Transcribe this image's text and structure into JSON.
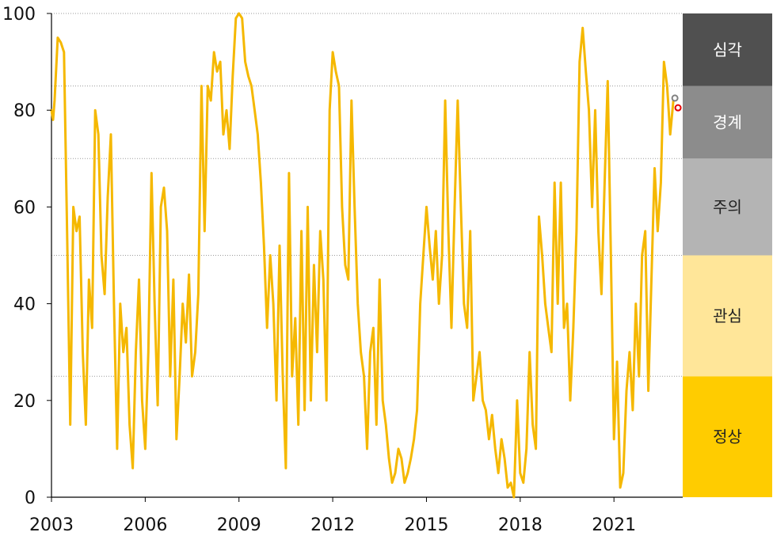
{
  "chart_data": {
    "type": "line",
    "xlabel": "",
    "ylabel": "",
    "xlim": [
      2003.0,
      2023.2
    ],
    "ylim": [
      0,
      100
    ],
    "y_ticks": [
      "0",
      "20",
      "40",
      "60",
      "80",
      "100"
    ],
    "x_ticks": [
      "2003",
      "2006",
      "2009",
      "2012",
      "2015",
      "2018",
      "2021"
    ],
    "grid": "horizontal dotted lines at 25, 50, 70, 85 and 100",
    "bands": [
      {
        "label": "정상",
        "from": 0,
        "to": 25,
        "color": "#ffcc00",
        "text_color": "#222222"
      },
      {
        "label": "관심",
        "from": 25,
        "to": 50,
        "color": "#ffe699",
        "text_color": "#222222"
      },
      {
        "label": "주의",
        "from": 50,
        "to": 70,
        "color": "#b4b4b4",
        "text_color": "#222222"
      },
      {
        "label": "경계",
        "from": 70,
        "to": 85,
        "color": "#8c8c8c",
        "text_color": "#ffffff"
      },
      {
        "label": "심각",
        "from": 85,
        "to": 100,
        "color": "#505050",
        "text_color": "#ffffff"
      }
    ],
    "series": [
      {
        "color": "#f5b800",
        "points": [
          [
            2003.0,
            80
          ],
          [
            2003.05,
            78
          ],
          [
            2003.1,
            82
          ],
          [
            2003.2,
            95
          ],
          [
            2003.3,
            94
          ],
          [
            2003.4,
            92
          ],
          [
            2003.5,
            55
          ],
          [
            2003.6,
            15
          ],
          [
            2003.7,
            60
          ],
          [
            2003.8,
            55
          ],
          [
            2003.9,
            58
          ],
          [
            2004.0,
            30
          ],
          [
            2004.1,
            15
          ],
          [
            2004.2,
            45
          ],
          [
            2004.3,
            35
          ],
          [
            2004.4,
            80
          ],
          [
            2004.5,
            75
          ],
          [
            2004.6,
            50
          ],
          [
            2004.7,
            42
          ],
          [
            2004.8,
            62
          ],
          [
            2004.9,
            75
          ],
          [
            2005.0,
            40
          ],
          [
            2005.1,
            10
          ],
          [
            2005.2,
            40
          ],
          [
            2005.3,
            30
          ],
          [
            2005.4,
            35
          ],
          [
            2005.5,
            15
          ],
          [
            2005.6,
            6
          ],
          [
            2005.7,
            30
          ],
          [
            2005.8,
            45
          ],
          [
            2005.9,
            20
          ],
          [
            2006.0,
            10
          ],
          [
            2006.1,
            30
          ],
          [
            2006.2,
            67
          ],
          [
            2006.3,
            40
          ],
          [
            2006.4,
            19
          ],
          [
            2006.5,
            60
          ],
          [
            2006.6,
            64
          ],
          [
            2006.7,
            55
          ],
          [
            2006.8,
            25
          ],
          [
            2006.9,
            45
          ],
          [
            2007.0,
            12
          ],
          [
            2007.1,
            25
          ],
          [
            2007.2,
            40
          ],
          [
            2007.3,
            32
          ],
          [
            2007.4,
            46
          ],
          [
            2007.5,
            25
          ],
          [
            2007.6,
            30
          ],
          [
            2007.7,
            42
          ],
          [
            2007.8,
            85
          ],
          [
            2007.9,
            55
          ],
          [
            2008.0,
            85
          ],
          [
            2008.1,
            82
          ],
          [
            2008.2,
            92
          ],
          [
            2008.3,
            88
          ],
          [
            2008.4,
            90
          ],
          [
            2008.5,
            75
          ],
          [
            2008.6,
            80
          ],
          [
            2008.7,
            72
          ],
          [
            2008.8,
            87
          ],
          [
            2008.9,
            99
          ],
          [
            2009.0,
            100
          ],
          [
            2009.1,
            99
          ],
          [
            2009.2,
            90
          ],
          [
            2009.3,
            87
          ],
          [
            2009.4,
            85
          ],
          [
            2009.5,
            80
          ],
          [
            2009.6,
            75
          ],
          [
            2009.7,
            65
          ],
          [
            2009.8,
            52
          ],
          [
            2009.9,
            35
          ],
          [
            2010.0,
            50
          ],
          [
            2010.1,
            40
          ],
          [
            2010.2,
            20
          ],
          [
            2010.3,
            52
          ],
          [
            2010.4,
            25
          ],
          [
            2010.5,
            6
          ],
          [
            2010.6,
            67
          ],
          [
            2010.7,
            25
          ],
          [
            2010.8,
            37
          ],
          [
            2010.9,
            15
          ],
          [
            2011.0,
            55
          ],
          [
            2011.1,
            18
          ],
          [
            2011.2,
            60
          ],
          [
            2011.3,
            20
          ],
          [
            2011.4,
            48
          ],
          [
            2011.5,
            30
          ],
          [
            2011.6,
            55
          ],
          [
            2011.7,
            45
          ],
          [
            2011.8,
            20
          ],
          [
            2011.9,
            80
          ],
          [
            2012.0,
            92
          ],
          [
            2012.1,
            88
          ],
          [
            2012.2,
            85
          ],
          [
            2012.3,
            60
          ],
          [
            2012.4,
            48
          ],
          [
            2012.5,
            45
          ],
          [
            2012.6,
            82
          ],
          [
            2012.7,
            60
          ],
          [
            2012.8,
            40
          ],
          [
            2012.9,
            30
          ],
          [
            2013.0,
            25
          ],
          [
            2013.1,
            10
          ],
          [
            2013.2,
            30
          ],
          [
            2013.3,
            35
          ],
          [
            2013.4,
            15
          ],
          [
            2013.5,
            45
          ],
          [
            2013.6,
            20
          ],
          [
            2013.7,
            15
          ],
          [
            2013.8,
            8
          ],
          [
            2013.9,
            3
          ],
          [
            2014.0,
            5
          ],
          [
            2014.1,
            10
          ],
          [
            2014.2,
            8
          ],
          [
            2014.3,
            3
          ],
          [
            2014.4,
            5
          ],
          [
            2014.5,
            8
          ],
          [
            2014.6,
            12
          ],
          [
            2014.7,
            18
          ],
          [
            2014.8,
            40
          ],
          [
            2014.9,
            50
          ],
          [
            2015.0,
            60
          ],
          [
            2015.1,
            52
          ],
          [
            2015.2,
            45
          ],
          [
            2015.3,
            55
          ],
          [
            2015.4,
            40
          ],
          [
            2015.5,
            50
          ],
          [
            2015.6,
            82
          ],
          [
            2015.7,
            55
          ],
          [
            2015.8,
            35
          ],
          [
            2015.9,
            60
          ],
          [
            2016.0,
            82
          ],
          [
            2016.1,
            60
          ],
          [
            2016.2,
            40
          ],
          [
            2016.3,
            35
          ],
          [
            2016.4,
            55
          ],
          [
            2016.5,
            20
          ],
          [
            2016.6,
            25
          ],
          [
            2016.7,
            30
          ],
          [
            2016.8,
            20
          ],
          [
            2016.9,
            18
          ],
          [
            2017.0,
            12
          ],
          [
            2017.1,
            17
          ],
          [
            2017.2,
            10
          ],
          [
            2017.3,
            5
          ],
          [
            2017.4,
            12
          ],
          [
            2017.5,
            8
          ],
          [
            2017.6,
            2
          ],
          [
            2017.7,
            3
          ],
          [
            2017.8,
            0
          ],
          [
            2017.9,
            20
          ],
          [
            2018.0,
            5
          ],
          [
            2018.1,
            3
          ],
          [
            2018.2,
            10
          ],
          [
            2018.3,
            30
          ],
          [
            2018.4,
            15
          ],
          [
            2018.5,
            10
          ],
          [
            2018.6,
            58
          ],
          [
            2018.7,
            50
          ],
          [
            2018.8,
            40
          ],
          [
            2018.9,
            35
          ],
          [
            2019.0,
            30
          ],
          [
            2019.1,
            65
          ],
          [
            2019.2,
            40
          ],
          [
            2019.3,
            65
          ],
          [
            2019.4,
            35
          ],
          [
            2019.5,
            40
          ],
          [
            2019.6,
            20
          ],
          [
            2019.7,
            35
          ],
          [
            2019.8,
            55
          ],
          [
            2019.9,
            90
          ],
          [
            2020.0,
            97
          ],
          [
            2020.1,
            88
          ],
          [
            2020.2,
            80
          ],
          [
            2020.3,
            60
          ],
          [
            2020.4,
            80
          ],
          [
            2020.5,
            55
          ],
          [
            2020.6,
            42
          ],
          [
            2020.7,
            65
          ],
          [
            2020.8,
            86
          ],
          [
            2020.9,
            50
          ],
          [
            2021.0,
            12
          ],
          [
            2021.1,
            28
          ],
          [
            2021.2,
            2
          ],
          [
            2021.3,
            5
          ],
          [
            2021.4,
            22
          ],
          [
            2021.5,
            30
          ],
          [
            2021.6,
            18
          ],
          [
            2021.7,
            40
          ],
          [
            2021.8,
            25
          ],
          [
            2021.9,
            50
          ],
          [
            2022.0,
            55
          ],
          [
            2022.1,
            22
          ],
          [
            2022.2,
            45
          ],
          [
            2022.3,
            68
          ],
          [
            2022.4,
            55
          ],
          [
            2022.5,
            65
          ],
          [
            2022.6,
            90
          ],
          [
            2022.7,
            85
          ],
          [
            2022.8,
            75
          ],
          [
            2022.9,
            82
          ]
        ]
      }
    ],
    "markers": [
      {
        "x": 2022.95,
        "y": 82.5,
        "color": "#808080"
      },
      {
        "x": 2023.05,
        "y": 80.5,
        "color": "#e60000"
      }
    ]
  }
}
